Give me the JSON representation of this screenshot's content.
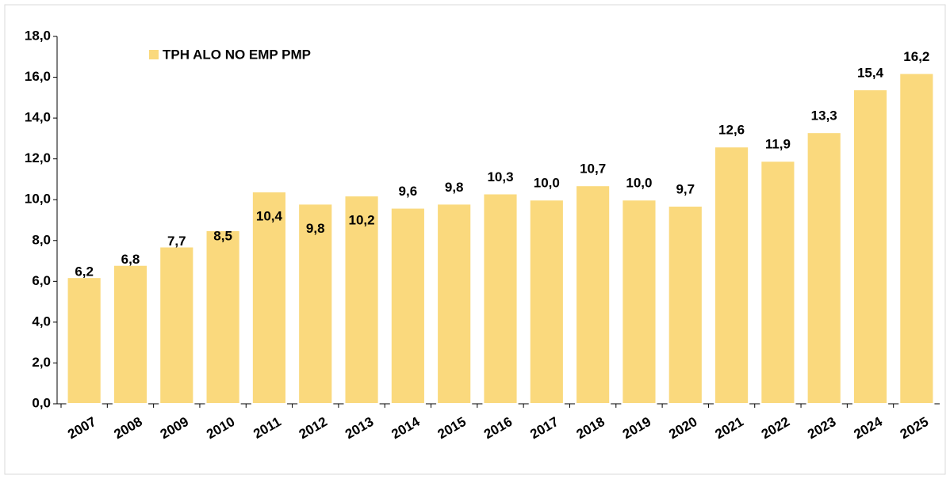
{
  "chart_data": {
    "type": "bar",
    "categories": [
      "2007",
      "2008",
      "2009",
      "2010",
      "2011",
      "2012",
      "2013",
      "2014",
      "2015",
      "2016",
      "2017",
      "2018",
      "2019",
      "2020",
      "2021",
      "2022",
      "2023",
      "2024",
      "2025"
    ],
    "series": [
      {
        "name": "TPH ALO NO EMP PMP",
        "color": "#fad97d",
        "values": [
          6.2,
          6.8,
          7.7,
          8.5,
          10.4,
          9.8,
          10.2,
          9.6,
          9.8,
          10.3,
          10.0,
          10.7,
          10.0,
          9.7,
          12.6,
          11.9,
          13.3,
          15.4,
          16.2
        ],
        "value_labels": [
          "6,2",
          "6,8",
          "7,7",
          "8,5",
          "10,4",
          "9,8",
          "10,2",
          "9,6",
          "9,8",
          "10,3",
          "10,0",
          "10,7",
          "10,0",
          "9,7",
          "12,6",
          "11,9",
          "13,3",
          "15,4",
          "16,2"
        ]
      }
    ],
    "ylim": [
      0,
      18
    ],
    "yticks": [
      {
        "value": 0,
        "label": "0,0"
      },
      {
        "value": 2,
        "label": "2,0"
      },
      {
        "value": 4,
        "label": "4,0"
      },
      {
        "value": 6,
        "label": "6,0"
      },
      {
        "value": 8,
        "label": "8,0"
      },
      {
        "value": 10,
        "label": "10,0"
      },
      {
        "value": 12,
        "label": "12,0"
      },
      {
        "value": 14,
        "label": "14,0"
      },
      {
        "value": 16,
        "label": "16,0"
      },
      {
        "value": 18,
        "label": "18,0"
      }
    ],
    "legend": "top-left"
  }
}
